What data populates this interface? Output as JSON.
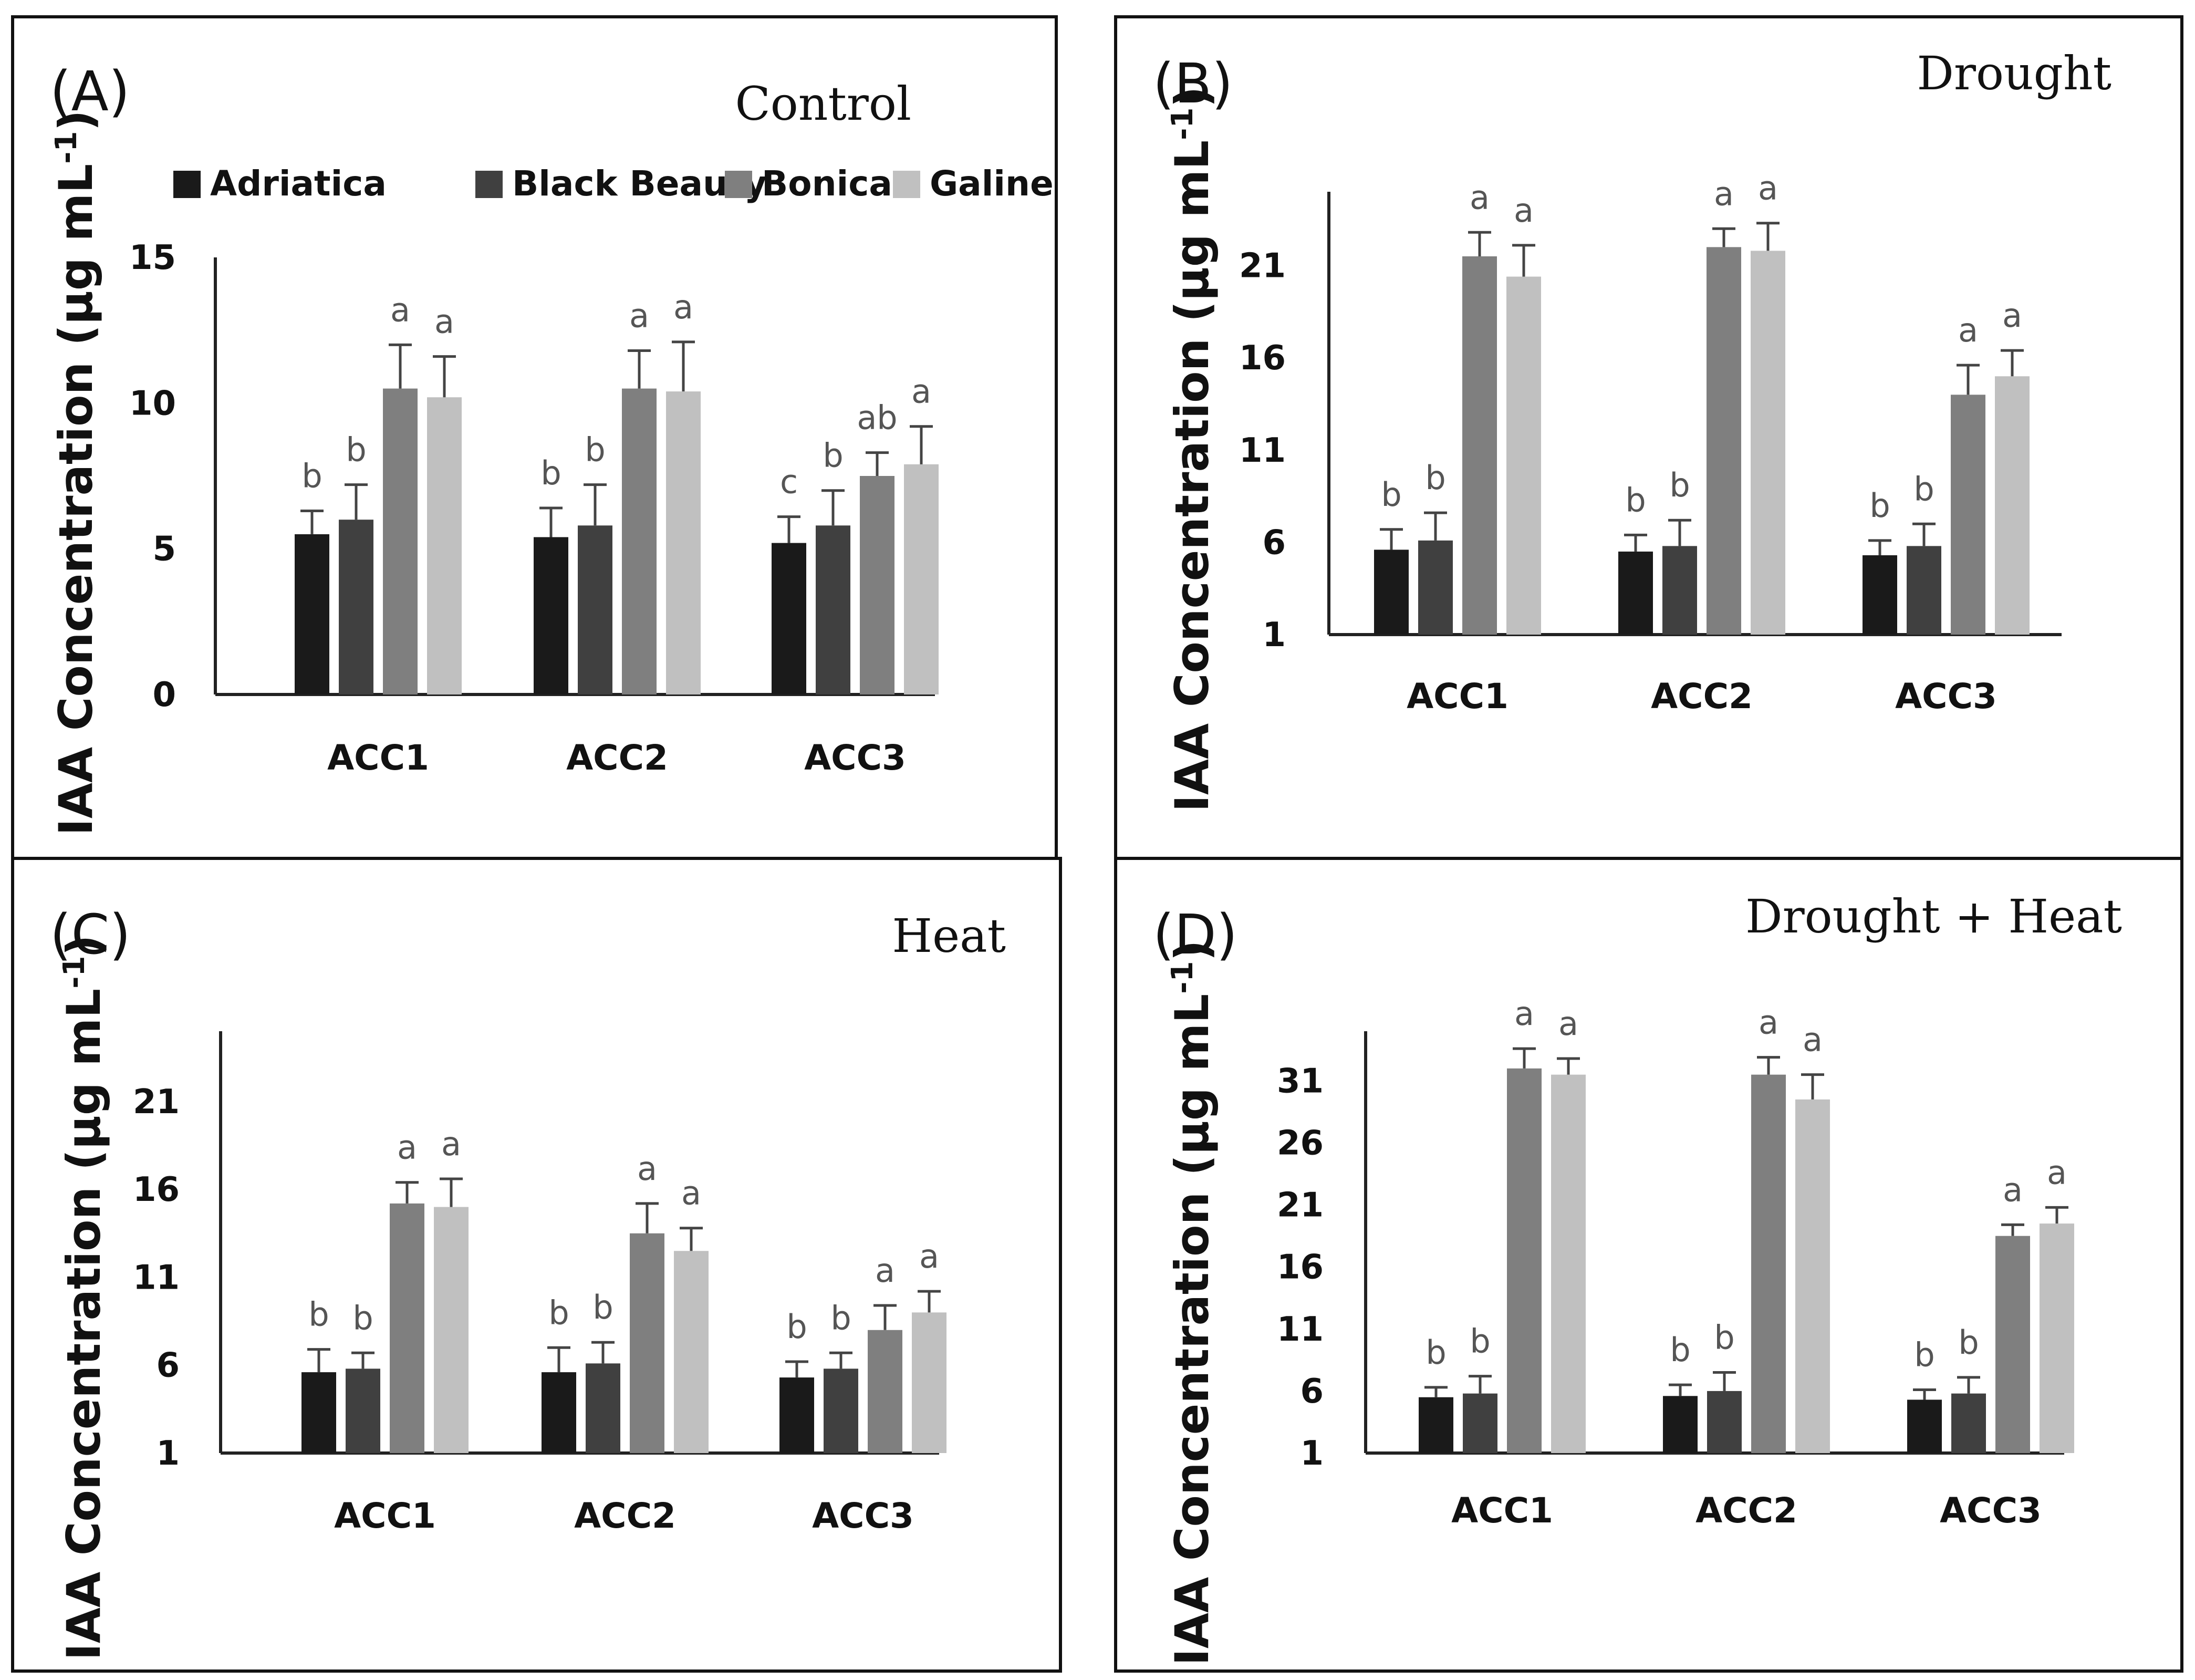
{
  "ylabel_main": "IAA Concentration (µg mL",
  "ylabel_sup": "-1",
  "ylabel_close": ")",
  "legend": [
    {
      "name": "Adriatica",
      "color": "#1a1a1a"
    },
    {
      "name": "Black Beauty",
      "color": "#404040"
    },
    {
      "name": "Bonica",
      "color": "#7f7f7f"
    },
    {
      "name": "Galine",
      "color": "#c0c0c0"
    }
  ],
  "chart_data": [
    {
      "type": "bar",
      "panel": "(A)",
      "title": "Control",
      "categories": [
        "ACC1",
        "ACC2",
        "ACC3"
      ],
      "ylim": [
        0,
        15
      ],
      "yticks": [
        0,
        5,
        10,
        15
      ],
      "series": [
        {
          "name": "Adriatica",
          "values": [
            5.5,
            5.4,
            5.2
          ],
          "errors": [
            0.8,
            1.0,
            0.9
          ],
          "letters": [
            "b",
            "b",
            "c"
          ]
        },
        {
          "name": "Black Beauty",
          "values": [
            6.0,
            5.8,
            5.8
          ],
          "errors": [
            1.2,
            1.4,
            1.2
          ],
          "letters": [
            "b",
            "b",
            "b"
          ]
        },
        {
          "name": "Bonica",
          "values": [
            10.5,
            10.5,
            7.5
          ],
          "errors": [
            1.5,
            1.3,
            0.8
          ],
          "letters": [
            "a",
            "a",
            "ab"
          ]
        },
        {
          "name": "Galine",
          "values": [
            10.2,
            10.4,
            7.9
          ],
          "errors": [
            1.4,
            1.7,
            1.3
          ],
          "letters": [
            "a",
            "a",
            "a"
          ]
        }
      ]
    },
    {
      "type": "bar",
      "panel": "(B)",
      "title": "Drought",
      "categories": [
        "ACC1",
        "ACC2",
        "ACC3"
      ],
      "ylim": [
        1,
        25
      ],
      "yticks": [
        1,
        6,
        11,
        16,
        21
      ],
      "series": [
        {
          "name": "Adriatica",
          "values": [
            5.6,
            5.5,
            5.3
          ],
          "errors": [
            1.1,
            0.9,
            0.8
          ],
          "letters": [
            "b",
            "b",
            "b"
          ]
        },
        {
          "name": "Black Beauty",
          "values": [
            6.1,
            5.8,
            5.8
          ],
          "errors": [
            1.5,
            1.4,
            1.2
          ],
          "letters": [
            "b",
            "b",
            "b"
          ]
        },
        {
          "name": "Bonica",
          "values": [
            21.5,
            22.0,
            14.0
          ],
          "errors": [
            1.3,
            1.0,
            1.6
          ],
          "letters": [
            "a",
            "a",
            "a"
          ]
        },
        {
          "name": "Galine",
          "values": [
            20.4,
            21.8,
            15.0
          ],
          "errors": [
            1.7,
            1.5,
            1.4
          ],
          "letters": [
            "a",
            "a",
            "a"
          ]
        }
      ]
    },
    {
      "type": "bar",
      "panel": "(C)",
      "title": "Heat",
      "categories": [
        "ACC1",
        "ACC2",
        "ACC3"
      ],
      "ylim": [
        1,
        25
      ],
      "yticks": [
        1,
        6,
        11,
        16,
        21
      ],
      "series": [
        {
          "name": "Adriatica",
          "values": [
            5.6,
            5.6,
            5.3
          ],
          "errors": [
            1.3,
            1.4,
            0.9
          ],
          "letters": [
            "b",
            "b",
            "b"
          ]
        },
        {
          "name": "Black Beauty",
          "values": [
            5.8,
            6.1,
            5.8
          ],
          "errors": [
            0.9,
            1.2,
            0.9
          ],
          "letters": [
            "b",
            "b",
            "b"
          ]
        },
        {
          "name": "Bonica",
          "values": [
            15.2,
            13.5,
            8.0
          ],
          "errors": [
            1.2,
            1.7,
            1.4
          ],
          "letters": [
            "a",
            "a",
            "a"
          ]
        },
        {
          "name": "Galine",
          "values": [
            15.0,
            12.5,
            9.0
          ],
          "errors": [
            1.6,
            1.3,
            1.2
          ],
          "letters": [
            "a",
            "a",
            "a"
          ]
        }
      ]
    },
    {
      "type": "bar",
      "panel": "(D)",
      "title": "Drought + Heat",
      "categories": [
        "ACC1",
        "ACC2",
        "ACC3"
      ],
      "ylim": [
        1,
        35
      ],
      "yticks": [
        1,
        6,
        11,
        16,
        21,
        26,
        31
      ],
      "series": [
        {
          "name": "Adriatica",
          "values": [
            5.5,
            5.6,
            5.3
          ],
          "errors": [
            0.8,
            0.9,
            0.8
          ],
          "letters": [
            "b",
            "b",
            "b"
          ]
        },
        {
          "name": "Black Beauty",
          "values": [
            5.8,
            6.0,
            5.8
          ],
          "errors": [
            1.4,
            1.5,
            1.3
          ],
          "letters": [
            "b",
            "b",
            "b"
          ]
        },
        {
          "name": "Bonica",
          "values": [
            32.0,
            31.5,
            18.5
          ],
          "errors": [
            1.6,
            1.4,
            0.9
          ],
          "letters": [
            "a",
            "a",
            "a"
          ]
        },
        {
          "name": "Galine",
          "values": [
            31.5,
            29.5,
            19.5
          ],
          "errors": [
            1.3,
            2.0,
            1.3
          ],
          "letters": [
            "a",
            "a",
            "a"
          ]
        }
      ]
    }
  ]
}
